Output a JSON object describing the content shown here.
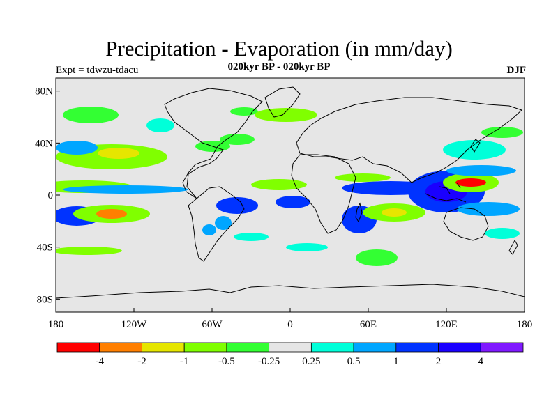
{
  "header": {
    "title": "Precipitation - Evaporation (in mm/day)",
    "subtitle": "020kyr BP - 020kyr BP",
    "expt": "Expt = tdwzu-tdacu",
    "season": "DJF"
  },
  "map": {
    "projection": "cylindrical equidistant",
    "lon_range": [
      -180,
      180
    ],
    "lat_range": [
      -90,
      90
    ],
    "y_ticks": [
      {
        "lat": 80,
        "label": "80N"
      },
      {
        "lat": 40,
        "label": "40N"
      },
      {
        "lat": 0,
        "label": "0"
      },
      {
        "lat": -40,
        "label": "40S"
      },
      {
        "lat": -80,
        "label": "80S"
      }
    ],
    "x_ticks": [
      {
        "lon": -180,
        "label": "180"
      },
      {
        "lon": -120,
        "label": "120W"
      },
      {
        "lon": -60,
        "label": "60W"
      },
      {
        "lon": 0,
        "label": "0"
      },
      {
        "lon": 60,
        "label": "60E"
      },
      {
        "lon": 120,
        "label": "120E"
      },
      {
        "lon": 180,
        "label": "180"
      }
    ],
    "background_color": "#e6e6e6",
    "coastline_color": "#000000"
  },
  "legend": {
    "colors": [
      "#ff0000",
      "#ff7f00",
      "#e6e600",
      "#80ff00",
      "#33ff33",
      "#e6e6e6",
      "#00ffd9",
      "#00a6ff",
      "#0033ff",
      "#1a00ff",
      "#8019ff"
    ],
    "labels": [
      "-4",
      "-2",
      "-1",
      "-0.5",
      "-0.25",
      "0.25",
      "0.5",
      "1",
      "2",
      "4"
    ]
  }
}
